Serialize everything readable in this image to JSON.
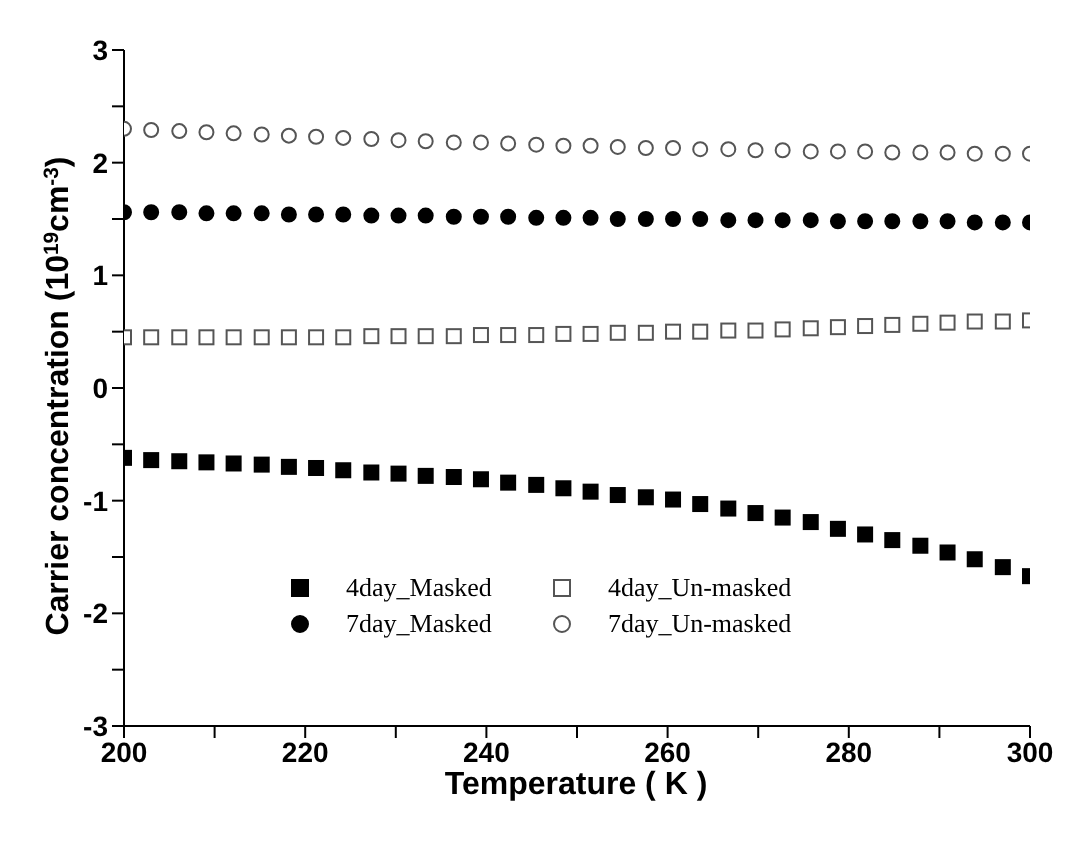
{
  "chart_data": {
    "type": "scatter",
    "xlabel": "Temperature ( K )",
    "ylabel": "Carrier  concentration (10$^{19}$cm$^{-3}$)",
    "x": [
      200,
      203,
      206.1,
      209.1,
      212.1,
      215.2,
      218.2,
      221.2,
      224.2,
      227.3,
      230.3,
      233.3,
      236.4,
      239.4,
      242.4,
      245.5,
      248.5,
      251.5,
      254.5,
      257.6,
      260.6,
      263.6,
      266.7,
      269.7,
      272.7,
      275.8,
      278.8,
      281.8,
      284.8,
      287.9,
      290.9,
      293.9,
      297,
      300
    ],
    "xlim": [
      200,
      300
    ],
    "xticks": [
      200,
      {
        "value": 210,
        "label": null
      },
      220,
      {
        "value": 230,
        "label": null
      },
      240,
      {
        "value": 250,
        "label": null
      },
      260,
      {
        "value": 270,
        "label": null
      },
      280,
      {
        "value": 290,
        "label": null
      },
      300
    ],
    "ylim": [
      -3,
      3
    ],
    "yticks": [
      -3,
      {
        "value": -2.5,
        "label": null
      },
      -2,
      {
        "value": -1.5,
        "label": null
      },
      -1,
      {
        "value": -0.5,
        "label": null
      },
      0,
      {
        "value": 0.5,
        "label": null
      },
      1,
      {
        "value": 1.5,
        "label": null
      },
      2,
      {
        "value": 2.5,
        "label": null
      },
      3
    ],
    "grid": false,
    "legend": "bottom left",
    "series": [
      {
        "name": "4day_Masked",
        "color": "#000000",
        "marker": "square",
        "values": [
          -0.62,
          -0.64,
          -0.65,
          -0.66,
          -0.67,
          -0.68,
          -0.7,
          -0.71,
          -0.73,
          -0.75,
          -0.76,
          -0.78,
          -0.79,
          -0.81,
          -0.84,
          -0.86,
          -0.89,
          -0.92,
          -0.95,
          -0.97,
          -0.99,
          -1.03,
          -1.07,
          -1.11,
          -1.15,
          -1.19,
          -1.25,
          -1.3,
          -1.35,
          -1.4,
          -1.46,
          -1.52,
          -1.59,
          -1.67
        ]
      },
      {
        "name": "4day_Un-masked",
        "color": "#555555",
        "marker": "square",
        "values": [
          0.45,
          0.45,
          0.45,
          0.45,
          0.45,
          0.45,
          0.45,
          0.45,
          0.45,
          0.46,
          0.46,
          0.46,
          0.46,
          0.47,
          0.47,
          0.47,
          0.48,
          0.48,
          0.49,
          0.49,
          0.5,
          0.5,
          0.51,
          0.51,
          0.52,
          0.53,
          0.54,
          0.55,
          0.56,
          0.57,
          0.58,
          0.59,
          0.59,
          0.6
        ]
      },
      {
        "name": "7day_Masked",
        "color": "#000000",
        "marker": "circle",
        "values": [
          1.56,
          1.56,
          1.56,
          1.55,
          1.55,
          1.55,
          1.54,
          1.54,
          1.54,
          1.53,
          1.53,
          1.53,
          1.52,
          1.52,
          1.52,
          1.51,
          1.51,
          1.51,
          1.5,
          1.5,
          1.5,
          1.5,
          1.49,
          1.49,
          1.49,
          1.49,
          1.48,
          1.48,
          1.48,
          1.48,
          1.48,
          1.47,
          1.47,
          1.47
        ]
      },
      {
        "name": "7day_Un-masked",
        "color": "#555555",
        "marker": "circle",
        "values": [
          2.3,
          2.29,
          2.28,
          2.27,
          2.26,
          2.25,
          2.24,
          2.23,
          2.22,
          2.21,
          2.2,
          2.19,
          2.18,
          2.18,
          2.17,
          2.16,
          2.15,
          2.15,
          2.14,
          2.13,
          2.13,
          2.12,
          2.12,
          2.11,
          2.11,
          2.1,
          2.1,
          2.1,
          2.09,
          2.09,
          2.09,
          2.08,
          2.08,
          2.08
        ]
      }
    ]
  }
}
